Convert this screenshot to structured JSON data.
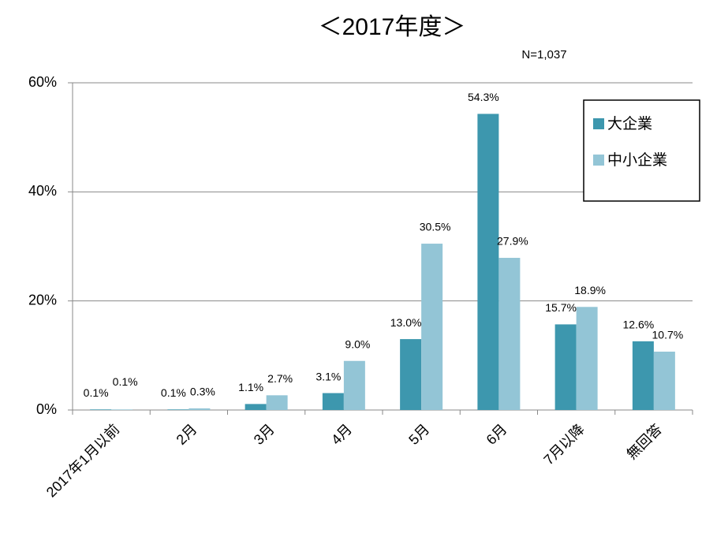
{
  "chart_data": {
    "type": "bar",
    "title": "＜2017年度＞",
    "subtitle": "N=1,037",
    "categories": [
      "2017年1月以前",
      "2月",
      "3月",
      "4月",
      "5月",
      "6月",
      "7月以降",
      "無回答"
    ],
    "series": [
      {
        "name": "大企業",
        "color": "#3d97ae",
        "values": [
          0.1,
          0.1,
          1.1,
          3.1,
          13.0,
          54.3,
          15.7,
          12.6
        ],
        "value_labels": [
          "0.1%",
          "0.1%",
          "1.1%",
          "3.1%",
          "13.0%",
          "54.3%",
          "15.7%",
          "12.6%"
        ]
      },
      {
        "name": "中小企業",
        "color": "#93c5d6",
        "values": [
          0.1,
          0.3,
          2.7,
          9.0,
          30.5,
          27.9,
          18.9,
          10.7
        ],
        "value_labels": [
          "0.1%",
          "0.3%",
          "2.7%",
          "9.0%",
          "30.5%",
          "27.9%",
          "18.9%",
          "10.7%"
        ]
      }
    ],
    "ylim": [
      0,
      60
    ],
    "yticks": [
      {
        "value": 0,
        "label": "0%"
      },
      {
        "value": 20,
        "label": "20%"
      },
      {
        "value": 40,
        "label": "40%"
      },
      {
        "value": 60,
        "label": "60%"
      }
    ],
    "grid": true,
    "legend": "upper right"
  }
}
